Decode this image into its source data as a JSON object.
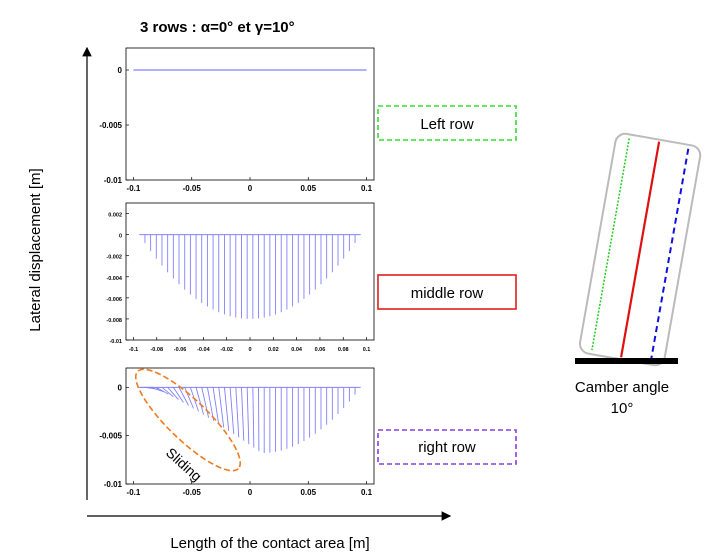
{
  "title_prefix": "3 rows : ",
  "title_formula": "α=0° et γ=10°",
  "y_axis_label": "Lateral displacement [m]",
  "x_axis_label": "Length of the contact area [m]",
  "camber_label_line1": "Camber angle",
  "camber_label_line2": "10°",
  "colors": {
    "plot_line": "#8080ff",
    "left_box": "#33dd33",
    "middle_box": "#e02020",
    "right_box": "#8a3ee0",
    "sliding_ellipse": "#f07a20",
    "tire_outline": "#bbbbbb",
    "tire_green": "#22cc22",
    "tire_red": "#e01010",
    "tire_blue": "#1010dd"
  },
  "rows": [
    {
      "label": "Left row",
      "box_style": "dashed"
    },
    {
      "label": "middle row",
      "box_style": "solid"
    },
    {
      "label": "right row",
      "box_style": "dashed"
    }
  ],
  "sliding_label": "Sliding",
  "chart_data": [
    {
      "type": "line",
      "name": "left-row-plot",
      "xlim": [
        -0.1,
        0.1
      ],
      "ylim": [
        -0.01,
        0.002
      ],
      "x_ticks": [
        "-0.1",
        "-0.05",
        "0",
        "0.05",
        "0.1"
      ],
      "x_tick_values": [
        -0.1,
        -0.05,
        0,
        0.05,
        0.1
      ],
      "y_ticks": [
        "0",
        "-0.005",
        "-0.01"
      ],
      "y_tick_values": [
        0,
        -0.005,
        -0.01
      ],
      "x": [
        -0.1,
        0.1
      ],
      "y": [
        0,
        0
      ]
    },
    {
      "type": "line",
      "name": "middle-row-plot",
      "xlim": [
        -0.1,
        0.1
      ],
      "ylim": [
        -0.01,
        0.003
      ],
      "x_ticks": [
        "-0.1",
        "-0.08",
        "-0.06",
        "-0.04",
        "-0.02",
        "0",
        "0.02",
        "0.04",
        "0.06",
        "0.08",
        "0.1"
      ],
      "x_tick_values": [
        -0.1,
        -0.08,
        -0.06,
        -0.04,
        -0.02,
        0,
        0.02,
        0.04,
        0.06,
        0.08,
        0.1
      ],
      "y_ticks": [
        "0.002",
        "0",
        "-0.002",
        "-0.004",
        "-0.006",
        "-0.008",
        "-0.01"
      ],
      "y_tick_values": [
        0.002,
        0,
        -0.002,
        -0.004,
        -0.006,
        -0.008,
        -0.01
      ],
      "profile": "parabola",
      "x_range": [
        -0.095,
        0.095
      ],
      "min_value": -0.008,
      "n_bristles": 40
    },
    {
      "type": "line",
      "name": "right-row-plot",
      "xlim": [
        -0.1,
        0.1
      ],
      "ylim": [
        -0.01,
        0.002
      ],
      "x_ticks": [
        "-0.1",
        "-0.05",
        "0",
        "0.05",
        "0.1"
      ],
      "x_tick_values": [
        -0.1,
        -0.05,
        0,
        0.05,
        0.1
      ],
      "y_ticks": [
        "0",
        "-0.005",
        "-0.01"
      ],
      "y_tick_values": [
        0,
        -0.005,
        -0.01
      ],
      "profile": "sliding",
      "x_range": [
        -0.095,
        0.095
      ],
      "min_value": -0.0068,
      "peak_x": 0.01,
      "n_bristles": 40
    }
  ]
}
